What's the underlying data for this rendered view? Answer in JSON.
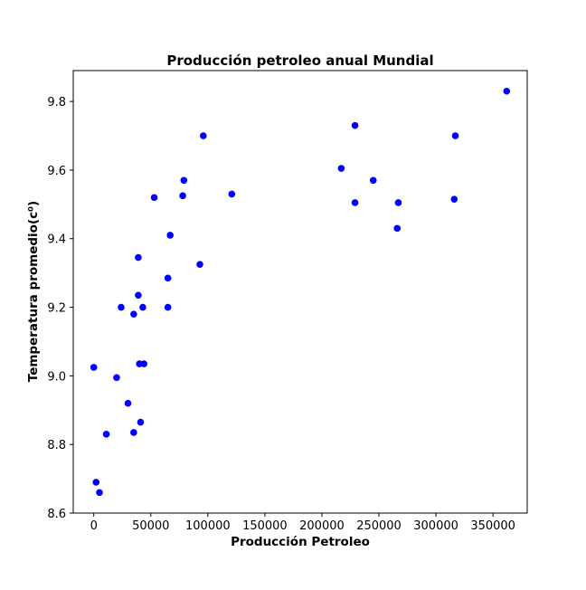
{
  "chart_data": {
    "type": "scatter",
    "title": "Producción petroleo anual Mundial",
    "xlabel": "Producción Petroleo",
    "ylabel": "Temperatura promedio(c⁰)",
    "xlim": [
      -18000,
      380000
    ],
    "ylim": [
      8.6,
      9.89
    ],
    "xticks": [
      0,
      50000,
      100000,
      150000,
      200000,
      250000,
      300000,
      350000
    ],
    "xtick_labels": [
      "0",
      "50000",
      "100000",
      "150000",
      "200000",
      "250000",
      "300000",
      "350000"
    ],
    "yticks": [
      8.6,
      8.8,
      9.0,
      9.2,
      9.4,
      9.6,
      9.8
    ],
    "ytick_labels": [
      "8.6",
      "8.8",
      "9.0",
      "9.2",
      "9.4",
      "9.6",
      "9.8"
    ],
    "grid": false,
    "marker_color": "#0000ff",
    "points": [
      {
        "x": 0,
        "y": 9.025
      },
      {
        "x": 2000,
        "y": 8.69
      },
      {
        "x": 5000,
        "y": 8.66
      },
      {
        "x": 11000,
        "y": 8.83
      },
      {
        "x": 20000,
        "y": 8.995
      },
      {
        "x": 24000,
        "y": 9.2
      },
      {
        "x": 30000,
        "y": 8.92
      },
      {
        "x": 35000,
        "y": 9.18
      },
      {
        "x": 35000,
        "y": 8.835
      },
      {
        "x": 39000,
        "y": 9.345
      },
      {
        "x": 39000,
        "y": 9.235
      },
      {
        "x": 40000,
        "y": 9.035
      },
      {
        "x": 41000,
        "y": 8.865
      },
      {
        "x": 43000,
        "y": 9.2
      },
      {
        "x": 44000,
        "y": 9.035
      },
      {
        "x": 53000,
        "y": 9.52
      },
      {
        "x": 65000,
        "y": 9.2
      },
      {
        "x": 65000,
        "y": 9.285
      },
      {
        "x": 67000,
        "y": 9.41
      },
      {
        "x": 78000,
        "y": 9.525
      },
      {
        "x": 79000,
        "y": 9.57
      },
      {
        "x": 93000,
        "y": 9.325
      },
      {
        "x": 96000,
        "y": 9.7
      },
      {
        "x": 121000,
        "y": 9.53
      },
      {
        "x": 217000,
        "y": 9.605
      },
      {
        "x": 229000,
        "y": 9.505
      },
      {
        "x": 229000,
        "y": 9.73
      },
      {
        "x": 245000,
        "y": 9.57
      },
      {
        "x": 266000,
        "y": 9.43
      },
      {
        "x": 267000,
        "y": 9.505
      },
      {
        "x": 316000,
        "y": 9.515
      },
      {
        "x": 317000,
        "y": 9.7
      },
      {
        "x": 362000,
        "y": 9.83
      }
    ]
  }
}
